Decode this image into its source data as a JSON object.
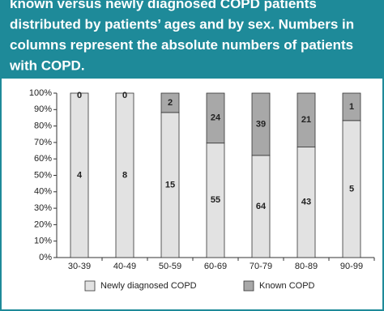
{
  "chart_data": {
    "type": "bar",
    "stacked": "percent",
    "title_lines": [
      "known versus newly diagnosed COPD patients",
      "distributed by patients’ ages and by sex. Numbers in",
      "columns represent the absolute numbers of patients",
      "with COPD."
    ],
    "categories": [
      "30-39",
      "40-49",
      "50-59",
      "60-69",
      "70-79",
      "80-89",
      "90-99"
    ],
    "series": [
      {
        "name": "Newly diagnosed COPD",
        "color": "#e2e2e2",
        "values": [
          4,
          8,
          15,
          55,
          64,
          43,
          5
        ]
      },
      {
        "name": "Known COPD",
        "color": "#a8a8a8",
        "values": [
          0,
          0,
          2,
          24,
          39,
          21,
          1
        ]
      }
    ],
    "ylim": [
      0,
      100
    ],
    "yticks": [
      {
        "value": 0,
        "label": "0%"
      },
      {
        "value": 10,
        "label": "10%"
      },
      {
        "value": 20,
        "label": "20%"
      },
      {
        "value": 30,
        "label": "30%"
      },
      {
        "value": 40,
        "label": "40%"
      },
      {
        "value": 50,
        "label": "50%"
      },
      {
        "value": 60,
        "label": "60%"
      },
      {
        "value": 70,
        "label": "70%"
      },
      {
        "value": 80,
        "label": "80%"
      },
      {
        "value": 90,
        "label": "90%"
      },
      {
        "value": 100,
        "label": "100%"
      }
    ],
    "grid": false,
    "legend": "bottom"
  }
}
